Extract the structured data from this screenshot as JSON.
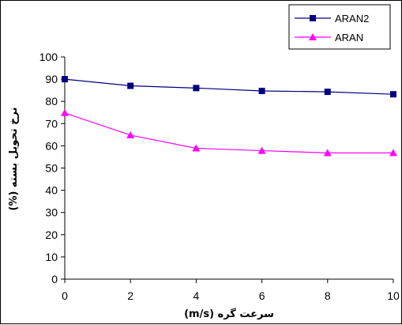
{
  "chart_data": {
    "type": "line",
    "xlabel": "سرعت گره (m/s)",
    "ylabel": "نرخ تحويل بسته (%)",
    "x": [
      0,
      2,
      4,
      6,
      8,
      10
    ],
    "xlim": [
      0,
      10
    ],
    "ylim": [
      0,
      100
    ],
    "xticks": [
      "0",
      "2",
      "4",
      "6",
      "8",
      "10"
    ],
    "yticks": [
      "0",
      "10",
      "20",
      "30",
      "40",
      "50",
      "60",
      "70",
      "80",
      "90",
      "100"
    ],
    "grid": false,
    "legend_position": "top-right",
    "series": [
      {
        "name": "ARAN2",
        "values": [
          90,
          87,
          86,
          84.7,
          84.3,
          83.2
        ],
        "color": "#000080",
        "marker": "square"
      },
      {
        "name": "ARAN",
        "values": [
          74.8,
          64.8,
          58.9,
          57.8,
          56.8,
          56.8
        ],
        "color": "#ff00ff",
        "marker": "triangle"
      }
    ]
  }
}
